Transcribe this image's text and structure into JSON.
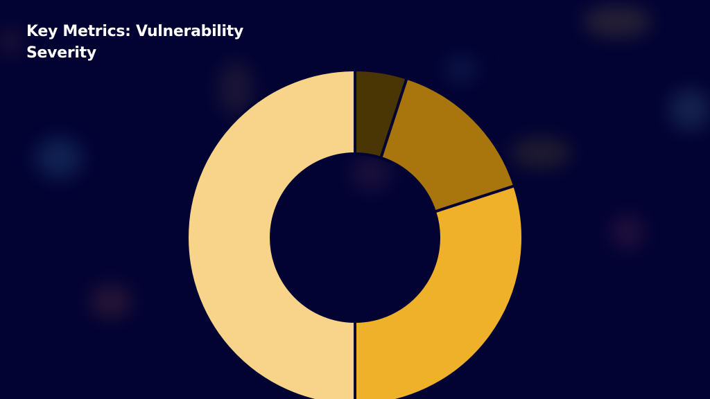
{
  "slide": {
    "title": "Key Metrics: Vulnerability Severity"
  },
  "colors": {
    "background": "#020233",
    "separator": "#020233"
  },
  "chart_data": {
    "type": "pie",
    "variant": "donut",
    "title": "Key Metrics: Vulnerability Severity",
    "legend": "none",
    "series": [
      {
        "name": "",
        "values": [
          5,
          15,
          30,
          50
        ]
      }
    ],
    "slice_colors": [
      "#4a3504",
      "#a8760c",
      "#f0b12a",
      "#f7d48a"
    ]
  }
}
